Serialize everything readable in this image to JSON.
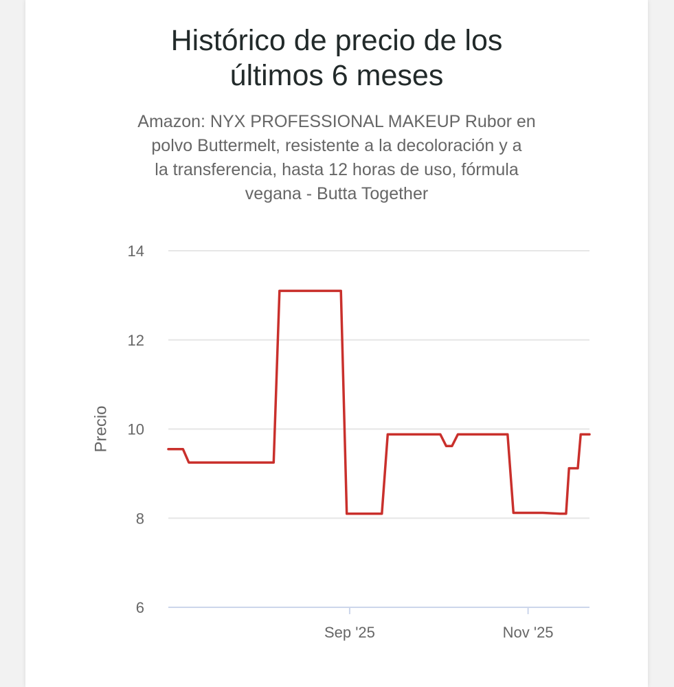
{
  "chart_data": {
    "type": "line",
    "title_lines": [
      "Histórico de precio de los",
      "últimos 6 meses"
    ],
    "subtitle_lines": [
      "Amazon: NYX PROFESSIONAL MAKEUP Rubor en",
      "polvo Buttermelt, resistente a la decoloración y a",
      "la transferencia, hasta 12 horas de uso, fórmula",
      "vegana - Butta Together"
    ],
    "xlabel": "",
    "ylabel": "Precio",
    "ylim": [
      6,
      14
    ],
    "yticks": [
      {
        "value": 6,
        "label": "6"
      },
      {
        "value": 8,
        "label": "8"
      },
      {
        "value": 10,
        "label": "10"
      },
      {
        "value": 12,
        "label": "12"
      },
      {
        "value": 14,
        "label": "14"
      }
    ],
    "xlim": [
      "2025-07-01",
      "2025-11-22"
    ],
    "xticks": [
      {
        "date": "2025-09-01",
        "label": "Sep '25"
      },
      {
        "date": "2025-11-01",
        "label": "Nov '25"
      }
    ],
    "grid": true,
    "series": [
      {
        "color": "#c9302c",
        "points": [
          {
            "x": "2025-07-01",
            "y": 9.55
          },
          {
            "x": "2025-07-06",
            "y": 9.55
          },
          {
            "x": "2025-07-08",
            "y": 9.25
          },
          {
            "x": "2025-08-06",
            "y": 9.25
          },
          {
            "x": "2025-08-08",
            "y": 13.1
          },
          {
            "x": "2025-08-29",
            "y": 13.1
          },
          {
            "x": "2025-08-31",
            "y": 8.1
          },
          {
            "x": "2025-09-12",
            "y": 8.1
          },
          {
            "x": "2025-09-14",
            "y": 9.88
          },
          {
            "x": "2025-10-02",
            "y": 9.88
          },
          {
            "x": "2025-10-04",
            "y": 9.62
          },
          {
            "x": "2025-10-06",
            "y": 9.62
          },
          {
            "x": "2025-10-08",
            "y": 9.88
          },
          {
            "x": "2025-10-25",
            "y": 9.88
          },
          {
            "x": "2025-10-27",
            "y": 8.12
          },
          {
            "x": "2025-11-06",
            "y": 8.12
          },
          {
            "x": "2025-11-12",
            "y": 8.1
          },
          {
            "x": "2025-11-14",
            "y": 8.1
          },
          {
            "x": "2025-11-15",
            "y": 9.12
          },
          {
            "x": "2025-11-18",
            "y": 9.12
          },
          {
            "x": "2025-11-19",
            "y": 9.88
          },
          {
            "x": "2025-11-22",
            "y": 9.88
          }
        ]
      }
    ]
  }
}
